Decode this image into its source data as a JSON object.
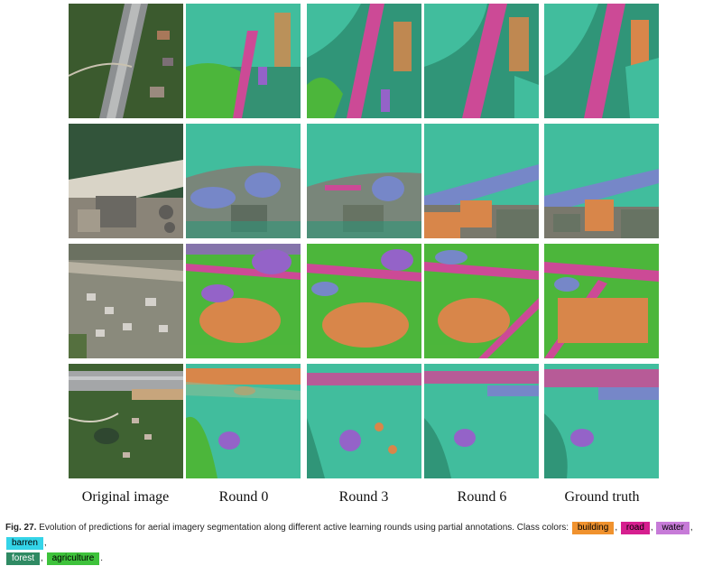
{
  "columns": [
    "Original image",
    "Round 0",
    "Round 3",
    "Round 6",
    "Ground truth"
  ],
  "caption": {
    "label": "Fig. 27.",
    "text": "Evolution of predictions for aerial imagery segmentation along different active learning rounds using partial annotations. Class colors:",
    "end": "."
  },
  "classes": [
    {
      "name": "building",
      "color": "#f0922e"
    },
    {
      "name": "road",
      "color": "#d61f8f"
    },
    {
      "name": "water",
      "color": "#c77bd8"
    },
    {
      "name": "barren",
      "color": "#34d4e8"
    },
    {
      "name": "forest",
      "color": "#2f8a63"
    },
    {
      "name": "agriculture",
      "color": "#3ec23b"
    }
  ]
}
